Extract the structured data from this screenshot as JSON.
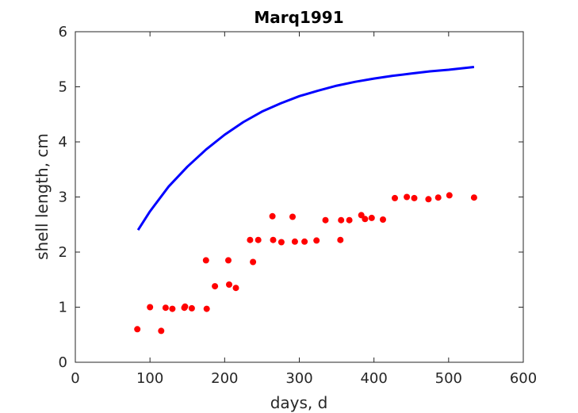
{
  "chart_data": {
    "type": "scatter",
    "title": "Marq1991",
    "xlabel": "days, d",
    "ylabel": "shell length, cm",
    "xlim": [
      0,
      600
    ],
    "ylim": [
      0,
      6
    ],
    "xticks": [
      0,
      100,
      200,
      300,
      400,
      500,
      600
    ],
    "yticks": [
      0,
      1,
      2,
      3,
      4,
      5,
      6
    ],
    "grid": false,
    "legend": "none",
    "series": [
      {
        "type": "scatter",
        "color": "#ff0000",
        "x": [
          83,
          100,
          115,
          121,
          130,
          146,
          147,
          156,
          175,
          176,
          187,
          205,
          206,
          215,
          234,
          238,
          245,
          264,
          265,
          276,
          291,
          294,
          307,
          323,
          335,
          355,
          356,
          367,
          383,
          388,
          397,
          412,
          428,
          444,
          454,
          473,
          486,
          501,
          534
        ],
        "y": [
          0.6,
          1.0,
          0.57,
          0.99,
          0.97,
          0.99,
          1.01,
          0.98,
          1.85,
          0.97,
          1.38,
          1.85,
          1.41,
          1.35,
          2.22,
          1.82,
          2.22,
          2.65,
          2.22,
          2.18,
          2.64,
          2.19,
          2.19,
          2.21,
          2.58,
          2.22,
          2.58,
          2.58,
          2.67,
          2.6,
          2.62,
          2.59,
          2.98,
          3.0,
          2.98,
          2.96,
          2.99,
          3.03,
          2.99
        ]
      },
      {
        "type": "line",
        "color": "#0000ff",
        "x": [
          84,
          100,
          125,
          150,
          175,
          200,
          225,
          250,
          275,
          300,
          325,
          350,
          375,
          400,
          425,
          450,
          475,
          500,
          534
        ],
        "y": [
          2.4,
          2.74,
          3.19,
          3.55,
          3.86,
          4.13,
          4.36,
          4.55,
          4.7,
          4.83,
          4.93,
          5.02,
          5.09,
          5.15,
          5.2,
          5.24,
          5.28,
          5.31,
          5.36
        ]
      }
    ]
  }
}
